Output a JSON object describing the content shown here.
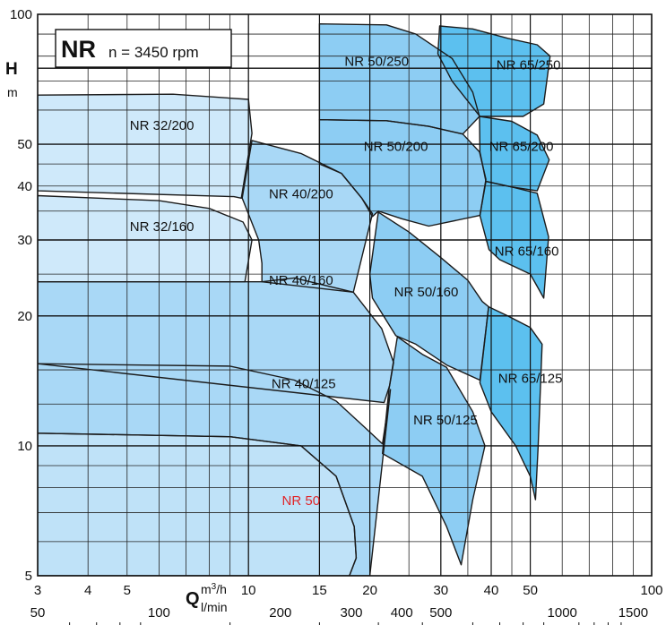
{
  "chart_data": {
    "type": "area",
    "title": "NR",
    "subtitle": "n = 3450 rpm",
    "ylabel": "H",
    "ylabel_unit": "m",
    "xlabel": "Q",
    "xlabel_unit_primary": "m³/h",
    "xlabel_unit_primary_base": "m",
    "xlabel_unit_primary_exp": "3",
    "xlabel_unit_primary_suffix": "/h",
    "xlabel_unit_secondary": "l/min",
    "x_scale": "log",
    "y_scale": "log",
    "xlim": [
      3,
      100
    ],
    "ylim": [
      5,
      100
    ],
    "grid": true,
    "x_ticks": [
      3,
      4,
      5,
      10,
      15,
      20,
      30,
      40,
      50,
      100
    ],
    "x_tick_labels": [
      "3",
      "4",
      "5",
      "10",
      "15",
      "20",
      "30",
      "40",
      "50",
      "100"
    ],
    "x2_ticks": [
      50,
      100,
      200,
      300,
      400,
      500,
      1000,
      1500
    ],
    "x2_tick_labels": [
      "50",
      "100",
      "200",
      "300",
      "400",
      "500",
      "1000",
      "1500"
    ],
    "y_ticks": [
      5,
      10,
      20,
      30,
      40,
      50,
      100
    ],
    "y_tick_labels": [
      "5",
      "10",
      "20",
      "30",
      "40",
      "50",
      "100"
    ],
    "series": [
      {
        "name": "NR 32/200",
        "color": "#cfe9fa",
        "region": [
          [
            3,
            65
          ],
          [
            6.5,
            65.3
          ],
          [
            10,
            63.5
          ],
          [
            10.2,
            53
          ],
          [
            9.6,
            37.5
          ],
          [
            9.2,
            37.8
          ],
          [
            3,
            39
          ]
        ]
      },
      {
        "name": "NR 32/160",
        "color": "#cfe9fa",
        "region": [
          [
            3,
            38
          ],
          [
            6,
            37
          ],
          [
            8,
            35.5
          ],
          [
            9.7,
            33
          ],
          [
            10.2,
            30
          ],
          [
            9.8,
            24
          ],
          [
            3,
            24
          ]
        ]
      },
      {
        "name": "NR 40/200",
        "color": "#a9d8f6",
        "region": [
          [
            10.2,
            51
          ],
          [
            13.5,
            47.6
          ],
          [
            17,
            42.8
          ],
          [
            19.1,
            37.5
          ],
          [
            20.3,
            34.5
          ],
          [
            18.2,
            22.7
          ],
          [
            10.8,
            24
          ],
          [
            10.8,
            26.5
          ],
          [
            10.6,
            30
          ],
          [
            9.65,
            37.5
          ]
        ]
      },
      {
        "name": "NR 40/160",
        "color": "#a9d8f6",
        "region": [
          [
            10.8,
            24
          ],
          [
            13,
            24.5
          ],
          [
            18.2,
            22.7
          ],
          [
            21.4,
            18.7
          ],
          [
            22.9,
            15.6
          ],
          [
            22.4,
            13.8
          ],
          [
            21.7,
            12.6
          ],
          [
            3,
            15.5
          ],
          [
            3,
            24
          ]
        ]
      },
      {
        "name": "NR 40/125",
        "color": "#a9d8f6",
        "region": [
          [
            3,
            15.5
          ],
          [
            9,
            15.3
          ],
          [
            13,
            14.2
          ],
          [
            16.5,
            12.7
          ],
          [
            19.5,
            11
          ],
          [
            21.5,
            10.1
          ],
          [
            22.5,
            13.5
          ],
          [
            20,
            5
          ],
          [
            17.8,
            5
          ],
          [
            18.5,
            5.5
          ],
          [
            18.3,
            6.5
          ],
          [
            16.5,
            8.5
          ],
          [
            13.5,
            10
          ],
          [
            9,
            10.5
          ],
          [
            3,
            10.7
          ]
        ]
      },
      {
        "name": "NR 50",
        "color": "#bfe2f8",
        "region": [
          [
            3,
            10.7
          ],
          [
            9,
            10.5
          ],
          [
            13.5,
            10
          ],
          [
            16.5,
            8.5
          ],
          [
            18.3,
            6.5
          ],
          [
            18.5,
            5.5
          ],
          [
            17.8,
            5
          ],
          [
            3,
            5
          ]
        ]
      },
      {
        "name": "NR 50/250",
        "color": "#8dcdf3",
        "region": [
          [
            15,
            95
          ],
          [
            22,
            94.5
          ],
          [
            26,
            90
          ],
          [
            32,
            79
          ],
          [
            36,
            66
          ],
          [
            37.4,
            58
          ],
          [
            34,
            52.8
          ],
          [
            28,
            55
          ],
          [
            22,
            56.7
          ],
          [
            15,
            57
          ]
        ]
      },
      {
        "name": "NR 50/200",
        "color": "#8dcdf3",
        "region": [
          [
            15,
            57
          ],
          [
            22,
            56.7
          ],
          [
            28,
            55
          ],
          [
            34,
            52.8
          ],
          [
            37.4,
            48
          ],
          [
            38.8,
            41.5
          ],
          [
            37.5,
            34.2
          ],
          [
            28,
            32.3
          ],
          [
            24,
            33.6
          ],
          [
            21,
            35
          ],
          [
            20.3,
            34
          ],
          [
            19.1,
            37.5
          ],
          [
            17,
            42.8
          ],
          [
            15,
            45
          ]
        ]
      },
      {
        "name": "NR 50/160",
        "color": "#8dcdf3",
        "region": [
          [
            21,
            34.8
          ],
          [
            25,
            31.3
          ],
          [
            30,
            27.3
          ],
          [
            35,
            24.2
          ],
          [
            38,
            21.6
          ],
          [
            39.4,
            21
          ],
          [
            37.5,
            14.2
          ],
          [
            31,
            15.4
          ],
          [
            26,
            17.2
          ],
          [
            23.2,
            18
          ],
          [
            20.3,
            22
          ],
          [
            20,
            25
          ]
        ]
      },
      {
        "name": "NR 50/125",
        "color": "#8dcdf3",
        "region": [
          [
            23.4,
            17.9
          ],
          [
            27,
            16.3
          ],
          [
            31,
            15.2
          ],
          [
            36,
            12
          ],
          [
            38.6,
            10
          ],
          [
            36,
            7.5
          ],
          [
            33.7,
            5.3
          ],
          [
            31,
            6.5
          ],
          [
            27,
            8.5
          ],
          [
            21.5,
            9.6
          ],
          [
            22.3,
            13.5
          ]
        ]
      },
      {
        "name": "NR 65/250",
        "color": "#5cc0ef",
        "region": [
          [
            29.8,
            94
          ],
          [
            36,
            92.5
          ],
          [
            44,
            88
          ],
          [
            52,
            85
          ],
          [
            56,
            80
          ],
          [
            54,
            62
          ],
          [
            48,
            58
          ],
          [
            37.5,
            58
          ],
          [
            32,
            70
          ],
          [
            29.5,
            81
          ]
        ]
      },
      {
        "name": "NR 65/200",
        "color": "#5cc0ef",
        "region": [
          [
            37.4,
            58
          ],
          [
            45,
            56.5
          ],
          [
            52,
            52.5
          ],
          [
            55.7,
            46
          ],
          [
            52,
            39
          ],
          [
            45,
            39.8
          ],
          [
            38.8,
            41
          ],
          [
            37.5,
            48
          ]
        ]
      },
      {
        "name": "NR 65/160",
        "color": "#5cc0ef",
        "region": [
          [
            38.8,
            41
          ],
          [
            45,
            39.8
          ],
          [
            52,
            38.5
          ],
          [
            55.5,
            30.5
          ],
          [
            54,
            22
          ],
          [
            50,
            25
          ],
          [
            42,
            27
          ],
          [
            39.5,
            28.5
          ],
          [
            37.5,
            34.2
          ]
        ]
      },
      {
        "name": "NR 65/125",
        "color": "#5cc0ef",
        "region": [
          [
            39.4,
            21
          ],
          [
            44,
            20
          ],
          [
            50,
            18.8
          ],
          [
            53.5,
            17.2
          ],
          [
            52.3,
            10
          ],
          [
            51.5,
            7.5
          ],
          [
            50,
            8.5
          ],
          [
            46,
            10
          ],
          [
            40,
            12
          ],
          [
            37.5,
            14
          ]
        ]
      }
    ]
  }
}
